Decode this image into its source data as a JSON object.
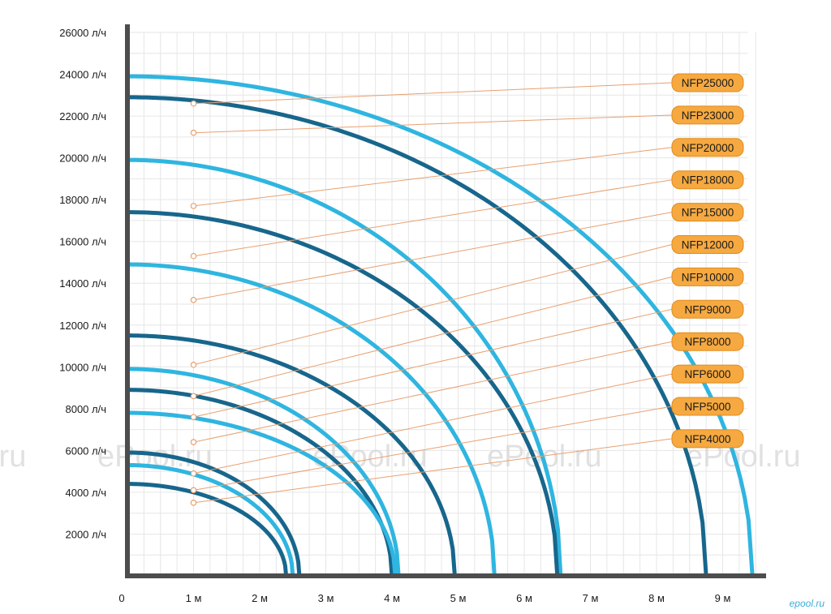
{
  "chart_data": {
    "type": "line",
    "title": "",
    "xlabel": "",
    "ylabel": "",
    "xlim": [
      0,
      9.5
    ],
    "ylim": [
      0,
      26000
    ],
    "x_ticks": [
      {
        "value": 0,
        "label": "0"
      },
      {
        "value": 1,
        "label": "1 м"
      },
      {
        "value": 2,
        "label": "2 м"
      },
      {
        "value": 3,
        "label": "3 м"
      },
      {
        "value": 4,
        "label": "4 м"
      },
      {
        "value": 5,
        "label": "5 м"
      },
      {
        "value": 6,
        "label": "6 м"
      },
      {
        "value": 7,
        "label": "7 м"
      },
      {
        "value": 8,
        "label": "8 м"
      },
      {
        "value": 9,
        "label": "9 м"
      }
    ],
    "y_ticks": [
      {
        "value": 2000,
        "label": "2000 л/ч"
      },
      {
        "value": 4000,
        "label": "4000 л/ч"
      },
      {
        "value": 6000,
        "label": "6000 л/ч"
      },
      {
        "value": 8000,
        "label": "8000 л/ч"
      },
      {
        "value": 10000,
        "label": "10000 л/ч"
      },
      {
        "value": 12000,
        "label": "12000 л/ч"
      },
      {
        "value": 14000,
        "label": "14000 л/ч"
      },
      {
        "value": 16000,
        "label": "16000 л/ч"
      },
      {
        "value": 18000,
        "label": "18000 л/ч"
      },
      {
        "value": 20000,
        "label": "20000 л/ч"
      },
      {
        "value": 22000,
        "label": "22000 л/ч"
      },
      {
        "value": 24000,
        "label": "24000 л/ч"
      },
      {
        "value": 26000,
        "label": "26000 л/ч"
      }
    ],
    "grid": true,
    "legend_placement": "right",
    "series": [
      {
        "name": "NFP25000",
        "color": "#2fb5e0",
        "max_flow": 23900,
        "max_head": 9.45,
        "marker_flow": 22600
      },
      {
        "name": "NFP23000",
        "color": "#17668c",
        "max_flow": 22900,
        "max_head": 8.75,
        "marker_flow": 21200
      },
      {
        "name": "NFP20000",
        "color": "#2fb5e0",
        "max_flow": 19900,
        "max_head": 6.55,
        "marker_flow": 17700
      },
      {
        "name": "NFP18000",
        "color": "#17668c",
        "max_flow": 17400,
        "max_head": 6.5,
        "marker_flow": 15300
      },
      {
        "name": "NFP15000",
        "color": "#2fb5e0",
        "max_flow": 14900,
        "max_head": 5.55,
        "marker_flow": 13200
      },
      {
        "name": "NFP12000",
        "color": "#17668c",
        "max_flow": 11500,
        "max_head": 4.95,
        "marker_flow": 10100
      },
      {
        "name": "NFP10000",
        "color": "#2fb5e0",
        "max_flow": 9900,
        "max_head": 4.1,
        "marker_flow": 8600
      },
      {
        "name": "NFP9000",
        "color": "#17668c",
        "max_flow": 8900,
        "max_head": 4.0,
        "marker_flow": 7600
      },
      {
        "name": "NFP8000",
        "color": "#2fb5e0",
        "max_flow": 7800,
        "max_head": 4.05,
        "marker_flow": 6400
      },
      {
        "name": "NFP6000",
        "color": "#17668c",
        "max_flow": 5900,
        "max_head": 2.6,
        "marker_flow": 4900
      },
      {
        "name": "NFP5000",
        "color": "#2fb5e0",
        "max_flow": 5300,
        "max_head": 2.5,
        "marker_flow": 4100
      },
      {
        "name": "NFP4000",
        "color": "#17668c",
        "max_flow": 4400,
        "max_head": 2.4,
        "marker_flow": 3500
      }
    ],
    "watermarks": [
      "ePool.ru",
      "ePool.ru",
      "ePool.ru",
      "ePool.ru",
      ".ru"
    ],
    "credit": "epool.ru"
  },
  "colors": {
    "axis": "#4d4d4d",
    "grid": "#e6e6e6",
    "legend_fill": "#f6a940",
    "legend_stroke": "#e08b1c",
    "leader": "#e8a070",
    "marker_fill": "#ffffff",
    "marker_stroke": "#e8a070"
  }
}
